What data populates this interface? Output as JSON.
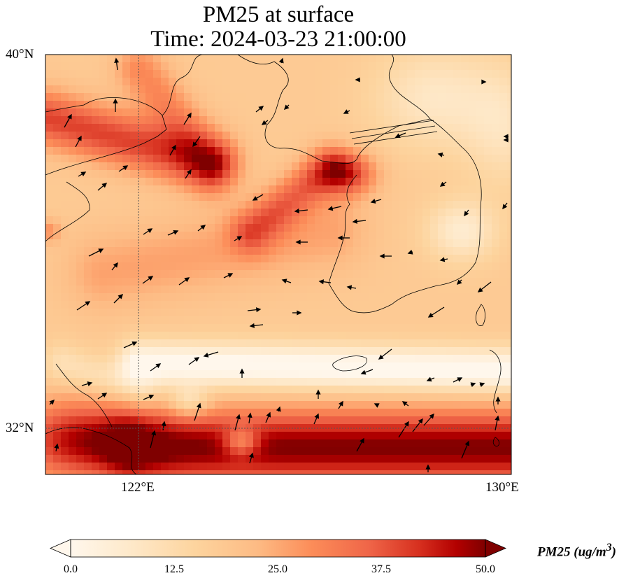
{
  "title": {
    "line1": "PM25 at surface",
    "line2": "Time: 2024-03-23 21:00:00"
  },
  "axes": {
    "lat_labels": [
      "40°N",
      "32°N"
    ],
    "lon_labels": [
      "122°E",
      "130°E"
    ],
    "lon_range": [
      120,
      130
    ],
    "lat_range": [
      31,
      40
    ],
    "gridline_lons": [
      122
    ],
    "gridline_lats": [
      32
    ]
  },
  "colorbar": {
    "label": "PM25 (ug/m",
    "label_sup": "3",
    "label_end": ")",
    "ticks": [
      "0.0",
      "12.5",
      "25.0",
      "37.5",
      "50.0"
    ],
    "min": 0,
    "max": 50,
    "colormap": "OrRd",
    "extend": "both"
  },
  "colors": {
    "low": "#fff7ec",
    "mid": "#fc8d59",
    "high": "#7f0000",
    "coastline": "#000000"
  }
}
